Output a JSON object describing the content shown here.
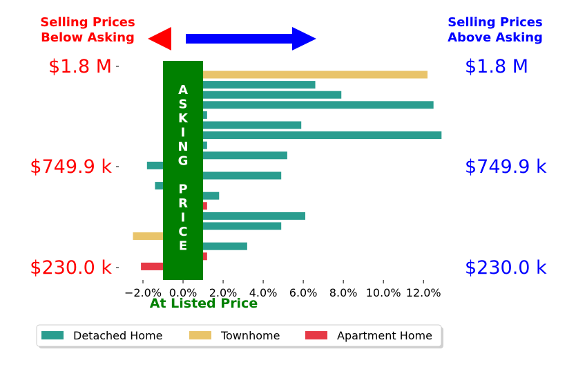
{
  "chart_data": {
    "type": "bar",
    "orientation": "horizontal",
    "x_tick_labels": [
      "−2.0%",
      "0.0%",
      "2.0%",
      "4.0%",
      "6.0%",
      "8.0%",
      "10.0%",
      "12.0%"
    ],
    "x_ticks": [
      -2,
      0,
      2,
      4,
      6,
      8,
      10,
      12
    ],
    "xlim": [
      -3,
      13.2
    ],
    "xlabel": "At Listed Price",
    "left_label": "Selling Prices\nBelow Asking",
    "right_label": "Selling Prices\nAbove Asking",
    "left_price_labels": [
      "$1.8 M",
      "$749.9 k",
      "$230.0 k"
    ],
    "right_price_labels": [
      "$1.8 M",
      "$749.9 k",
      "$230.0 k"
    ],
    "asking_price_text": "ASKING PRICE",
    "asking_price_band": [
      -1.0,
      1.0
    ],
    "legend": {
      "position": "bottom",
      "entries": [
        {
          "name": "Detached Home",
          "color": "#2a9d8f"
        },
        {
          "name": "Townhome",
          "color": "#e9c46a"
        },
        {
          "name": "Apartment Home",
          "color": "#e63946"
        }
      ]
    },
    "colors": {
      "below": "#ff0000",
      "above": "#0000ff",
      "asking_band": "#008000"
    },
    "bars": [
      {
        "type": "Townhome",
        "value": 12.2
      },
      {
        "type": "Detached Home",
        "value": 6.6
      },
      {
        "type": "Detached Home",
        "value": 7.9
      },
      {
        "type": "Detached Home",
        "value": 12.5
      },
      {
        "type": "Detached Home",
        "value": 1.2
      },
      {
        "type": "Detached Home",
        "value": 5.9
      },
      {
        "type": "Detached Home",
        "value": 12.9
      },
      {
        "type": "Detached Home",
        "value": 1.2
      },
      {
        "type": "Detached Home",
        "value": 5.2
      },
      {
        "type": "Detached Home",
        "value": -1.8
      },
      {
        "type": "Detached Home",
        "value": 4.9
      },
      {
        "type": "Detached Home",
        "value": -1.4
      },
      {
        "type": "Detached Home",
        "value": 1.8
      },
      {
        "type": "Apartment Home",
        "value": 1.2
      },
      {
        "type": "Detached Home",
        "value": 6.1
      },
      {
        "type": "Detached Home",
        "value": 4.9
      },
      {
        "type": "Townhome",
        "value": -2.5
      },
      {
        "type": "Detached Home",
        "value": 3.2
      },
      {
        "type": "Apartment Home",
        "value": 1.2
      },
      {
        "type": "Apartment Home",
        "value": -2.1
      }
    ]
  }
}
